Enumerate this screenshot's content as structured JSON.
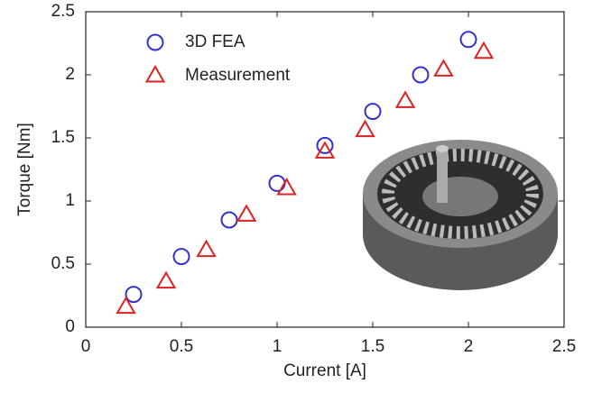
{
  "chart_data": {
    "type": "scatter",
    "xlabel": "Current [A]",
    "ylabel": "Torque [Nm]",
    "xlim": [
      0,
      2.5
    ],
    "ylim": [
      0,
      2.5
    ],
    "xticks": [
      0,
      0.5,
      1,
      1.5,
      2,
      2.5
    ],
    "yticks": [
      0,
      0.5,
      1,
      1.5,
      2,
      2.5
    ],
    "grid": false,
    "legend": "upper left",
    "series": [
      {
        "name": "3D FEA",
        "color": "#3333cc",
        "marker": "circle",
        "x": [
          0.25,
          0.5,
          0.75,
          1.0,
          1.25,
          1.5,
          1.75,
          2.0
        ],
        "values": [
          0.26,
          0.56,
          0.85,
          1.14,
          1.44,
          1.71,
          2.0,
          2.28
        ]
      },
      {
        "name": "Measurement",
        "color": "#dd2222",
        "marker": "triangle",
        "x": [
          0.21,
          0.42,
          0.63,
          0.84,
          1.05,
          1.25,
          1.46,
          1.67,
          1.87,
          2.08
        ],
        "values": [
          0.16,
          0.36,
          0.61,
          0.89,
          1.1,
          1.39,
          1.56,
          1.79,
          2.04,
          2.18
        ]
      }
    ]
  }
}
